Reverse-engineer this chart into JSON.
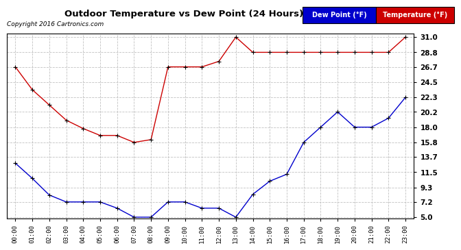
{
  "title": "Outdoor Temperature vs Dew Point (24 Hours) 20160129",
  "copyright": "Copyright 2016 Cartronics.com",
  "x_labels": [
    "00:00",
    "01:00",
    "02:00",
    "03:00",
    "04:00",
    "05:00",
    "06:00",
    "07:00",
    "08:00",
    "09:00",
    "10:00",
    "11:00",
    "12:00",
    "13:00",
    "14:00",
    "15:00",
    "16:00",
    "17:00",
    "18:00",
    "19:00",
    "20:00",
    "21:00",
    "22:00",
    "23:00"
  ],
  "temp_data": [
    26.7,
    23.4,
    21.2,
    19.0,
    17.8,
    16.8,
    16.8,
    15.8,
    16.2,
    26.7,
    26.7,
    26.7,
    27.5,
    31.0,
    28.8,
    28.8,
    28.8,
    28.8,
    28.8,
    28.8,
    28.8,
    28.8,
    28.8,
    31.0
  ],
  "dew_data": [
    12.8,
    10.6,
    8.2,
    7.2,
    7.2,
    7.2,
    6.3,
    5.0,
    5.0,
    7.2,
    7.2,
    6.3,
    6.3,
    5.0,
    8.3,
    10.2,
    11.2,
    15.8,
    18.0,
    20.2,
    18.0,
    18.0,
    19.3,
    22.3
  ],
  "temp_color": "#cc0000",
  "dew_color": "#0000cc",
  "ylim_min": 5.0,
  "ylim_max": 31.0,
  "yticks": [
    5.0,
    7.2,
    9.3,
    11.5,
    13.7,
    15.8,
    18.0,
    20.2,
    22.3,
    24.5,
    26.7,
    28.8,
    31.0
  ],
  "bg_color": "#ffffff",
  "plot_bg": "#ffffff",
  "grid_color": "#bbbbbb",
  "legend_dew_bg": "#0000cc",
  "legend_temp_bg": "#cc0000",
  "legend_dew_text": "Dew Point (°F)",
  "legend_temp_text": "Temperature (°F)"
}
